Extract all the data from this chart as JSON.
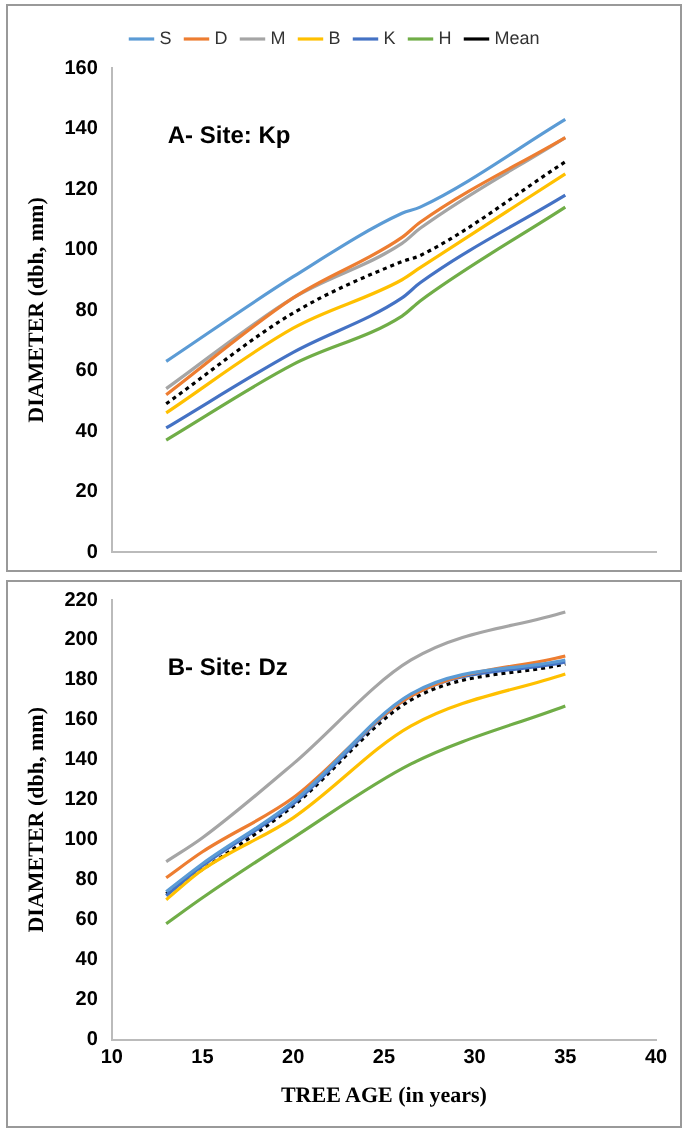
{
  "chart_data": [
    {
      "type": "line",
      "annotations": [
        "A- Site: Kp"
      ],
      "ylabel": "DIAMETER (dbh, mm)",
      "x": [
        13,
        20,
        26,
        27,
        35
      ],
      "xlim": [
        10,
        40
      ],
      "ylim": [
        0,
        160
      ],
      "yticks": [
        0,
        20,
        40,
        60,
        80,
        100,
        120,
        140,
        160
      ],
      "tick_labels": "y",
      "grid": false,
      "legend": "top",
      "marker": "none",
      "series": [
        {
          "name": "S",
          "color": "#5b9bd5",
          "values": [
            63,
            91,
            112,
            114,
            143
          ]
        },
        {
          "name": "D",
          "color": "#ed7d31",
          "values": [
            52,
            84,
            104,
            109,
            137
          ]
        },
        {
          "name": "M",
          "color": "#a5a5a5",
          "values": [
            54,
            84,
            102,
            107,
            137
          ]
        },
        {
          "name": "B",
          "color": "#ffc000",
          "values": [
            46,
            74,
            90,
            94,
            125
          ]
        },
        {
          "name": "K",
          "color": "#4472c4",
          "values": [
            41,
            66,
            84,
            89,
            118
          ]
        },
        {
          "name": "H",
          "color": "#70ad47",
          "values": [
            37,
            62,
            78,
            83,
            114
          ]
        },
        {
          "name": "Mean",
          "color": "#000000",
          "line_style": "dotted",
          "values": [
            49,
            79,
            96,
            98,
            129
          ]
        }
      ]
    },
    {
      "type": "line",
      "annotations": [
        "B- Site: Dz"
      ],
      "xlabel": "TREE AGE (in years)",
      "ylabel": "DIAMETER (dbh, mm)",
      "x": [
        13,
        15,
        20,
        26.5,
        35
      ],
      "xlim": [
        10,
        40
      ],
      "xticks": [
        10,
        15,
        20,
        25,
        30,
        35,
        40
      ],
      "ylim": [
        0,
        220
      ],
      "yticks": [
        0,
        20,
        40,
        60,
        80,
        100,
        120,
        140,
        160,
        180,
        200,
        220
      ],
      "grid": false,
      "legend": false,
      "marker": "none",
      "series": [
        {
          "color": "#5b9bd5",
          "values": [
            74,
            88,
            119,
            173,
            190
          ]
        },
        {
          "color": "#ed7d31",
          "values": [
            81,
            94,
            121,
            172,
            192
          ]
        },
        {
          "color": "#a5a5a5",
          "values": [
            89,
            101,
            138,
            190,
            214
          ]
        },
        {
          "color": "#ffc000",
          "values": [
            70,
            85,
            111,
            157,
            183
          ]
        },
        {
          "color": "#4472c4",
          "values": [
            72,
            87,
            118,
            172,
            189
          ]
        },
        {
          "color": "#70ad47",
          "values": [
            58,
            71,
            101,
            138,
            167
          ]
        },
        {
          "color": "#000000",
          "line_style": "dotted",
          "x": [
            13,
            20,
            26.5,
            35
          ],
          "values": [
            73,
            117,
            170,
            188
          ]
        }
      ]
    }
  ]
}
